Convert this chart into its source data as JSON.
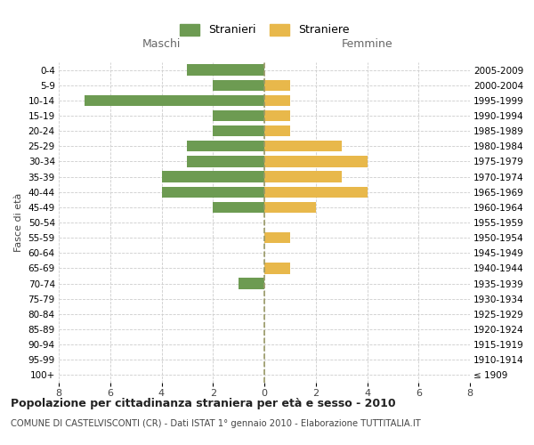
{
  "age_groups": [
    "100+",
    "95-99",
    "90-94",
    "85-89",
    "80-84",
    "75-79",
    "70-74",
    "65-69",
    "60-64",
    "55-59",
    "50-54",
    "45-49",
    "40-44",
    "35-39",
    "30-34",
    "25-29",
    "20-24",
    "15-19",
    "10-14",
    "5-9",
    "0-4"
  ],
  "birth_years": [
    "≤ 1909",
    "1910-1914",
    "1915-1919",
    "1920-1924",
    "1925-1929",
    "1930-1934",
    "1935-1939",
    "1940-1944",
    "1945-1949",
    "1950-1954",
    "1955-1959",
    "1960-1964",
    "1965-1969",
    "1970-1974",
    "1975-1979",
    "1980-1984",
    "1985-1989",
    "1990-1994",
    "1995-1999",
    "2000-2004",
    "2005-2009"
  ],
  "maschi": [
    0,
    0,
    0,
    0,
    0,
    0,
    1,
    0,
    0,
    0,
    0,
    2,
    4,
    4,
    3,
    3,
    2,
    2,
    7,
    2,
    3
  ],
  "femmine": [
    0,
    0,
    0,
    0,
    0,
    0,
    0,
    1,
    0,
    1,
    0,
    2,
    4,
    3,
    4,
    3,
    1,
    1,
    1,
    1,
    0
  ],
  "maschi_color": "#6d9b52",
  "femmine_color": "#e8b84b",
  "background_color": "#ffffff",
  "grid_color": "#cccccc",
  "title": "Popolazione per cittadinanza straniera per età e sesso - 2010",
  "subtitle": "COMUNE DI CASTELVISCONTI (CR) - Dati ISTAT 1° gennaio 2010 - Elaborazione TUTTITALIA.IT",
  "xlabel_left": "Maschi",
  "xlabel_right": "Femmine",
  "ylabel_left": "Fasce di età",
  "legend_maschi": "Stranieri",
  "legend_femmine": "Straniere",
  "xlim": 8,
  "dashed_color": "#999966"
}
